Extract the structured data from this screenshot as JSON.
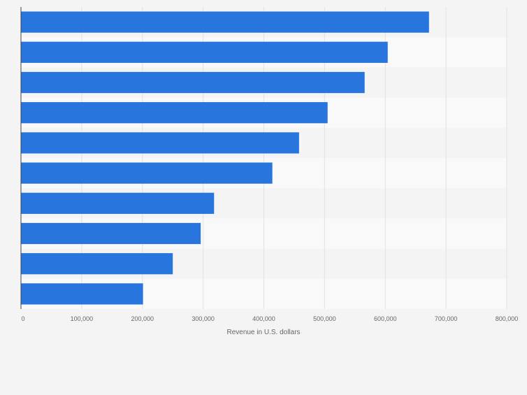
{
  "chart_data": {
    "type": "bar",
    "orientation": "horizontal",
    "categories": [
      "",
      "",
      "",
      "",
      "",
      "",
      "",
      "",
      "",
      ""
    ],
    "values": [
      672000,
      604000,
      566000,
      505000,
      458000,
      414000,
      318000,
      296000,
      250000,
      201000
    ],
    "xlabel": "Revenue in U.S. dollars",
    "ylabel": "",
    "xlim": [
      0,
      800000
    ],
    "x_ticks": [
      0,
      100000,
      200000,
      300000,
      400000,
      500000,
      600000,
      700000,
      800000
    ],
    "x_tick_labels": [
      "0",
      "100,000",
      "200,000",
      "300,000",
      "400,000",
      "500,000",
      "600,000",
      "700,000",
      "800,000"
    ],
    "grid": true,
    "legend": "none",
    "colors": {
      "bar": "#2876dd",
      "background": "#f4f4f4",
      "band_light": "#f9f9f9",
      "band_dark": "#f4f4f4",
      "grid": "#e2e2e2",
      "axis": "#444444",
      "tick_text": "#666666"
    }
  }
}
